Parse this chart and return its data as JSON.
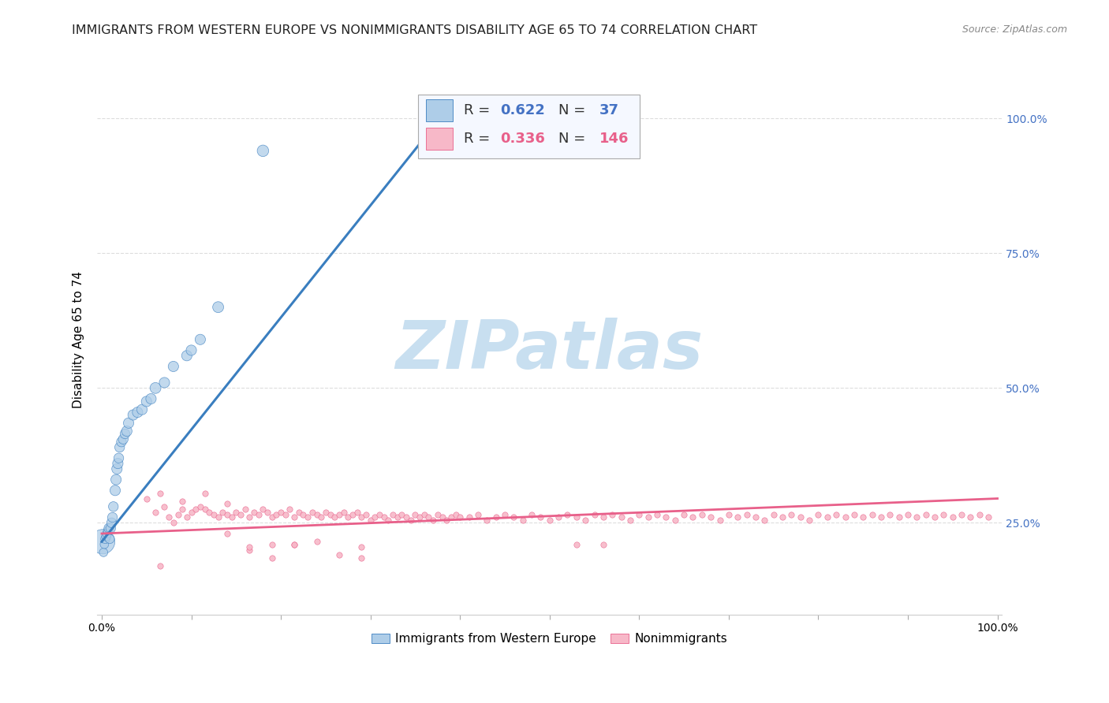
{
  "title": "IMMIGRANTS FROM WESTERN EUROPE VS NONIMMIGRANTS DISABILITY AGE 65 TO 74 CORRELATION CHART",
  "source_text": "Source: ZipAtlas.com",
  "ylabel": "Disability Age 65 to 74",
  "watermark": "ZIPatlas",
  "blue_R": "0.622",
  "blue_N": "37",
  "pink_R": "0.336",
  "pink_N": "146",
  "blue_label": "Immigrants from Western Europe",
  "pink_label": "Nonimmigrants",
  "blue_color": "#aecde8",
  "blue_line_color": "#3a7ebf",
  "pink_color": "#f7b8c8",
  "pink_line_color": "#e8608a",
  "blue_scatter_x": [
    0.001,
    0.002,
    0.003,
    0.004,
    0.005,
    0.006,
    0.007,
    0.008,
    0.009,
    0.01,
    0.011,
    0.012,
    0.013,
    0.015,
    0.016,
    0.017,
    0.018,
    0.019,
    0.02,
    0.022,
    0.024,
    0.026,
    0.028,
    0.03,
    0.035,
    0.04,
    0.045,
    0.05,
    0.055,
    0.06,
    0.07,
    0.08,
    0.095,
    0.1,
    0.11,
    0.13,
    0.18
  ],
  "blue_scatter_y": [
    0.215,
    0.195,
    0.21,
    0.22,
    0.225,
    0.23,
    0.235,
    0.24,
    0.22,
    0.24,
    0.25,
    0.26,
    0.28,
    0.31,
    0.33,
    0.35,
    0.36,
    0.37,
    0.39,
    0.4,
    0.405,
    0.415,
    0.42,
    0.435,
    0.45,
    0.455,
    0.46,
    0.475,
    0.48,
    0.5,
    0.51,
    0.54,
    0.56,
    0.57,
    0.59,
    0.65,
    0.94
  ],
  "blue_scatter_sizes": [
    500,
    60,
    60,
    70,
    70,
    70,
    70,
    80,
    70,
    80,
    80,
    80,
    80,
    90,
    90,
    90,
    90,
    80,
    80,
    80,
    80,
    80,
    90,
    90,
    90,
    90,
    90,
    90,
    90,
    100,
    90,
    90,
    90,
    90,
    90,
    100,
    110
  ],
  "pink_scatter_x": [
    0.05,
    0.06,
    0.07,
    0.075,
    0.08,
    0.085,
    0.09,
    0.095,
    0.1,
    0.105,
    0.11,
    0.115,
    0.12,
    0.125,
    0.13,
    0.135,
    0.14,
    0.145,
    0.15,
    0.155,
    0.16,
    0.165,
    0.17,
    0.175,
    0.18,
    0.185,
    0.19,
    0.195,
    0.2,
    0.205,
    0.21,
    0.215,
    0.22,
    0.225,
    0.23,
    0.235,
    0.24,
    0.245,
    0.25,
    0.255,
    0.26,
    0.265,
    0.27,
    0.275,
    0.28,
    0.285,
    0.29,
    0.295,
    0.3,
    0.305,
    0.31,
    0.315,
    0.32,
    0.325,
    0.33,
    0.335,
    0.34,
    0.345,
    0.35,
    0.355,
    0.36,
    0.365,
    0.37,
    0.375,
    0.38,
    0.385,
    0.39,
    0.395,
    0.4,
    0.41,
    0.42,
    0.43,
    0.44,
    0.45,
    0.46,
    0.47,
    0.48,
    0.49,
    0.5,
    0.51,
    0.52,
    0.53,
    0.54,
    0.55,
    0.56,
    0.57,
    0.58,
    0.59,
    0.6,
    0.61,
    0.62,
    0.63,
    0.64,
    0.65,
    0.66,
    0.67,
    0.68,
    0.69,
    0.7,
    0.71,
    0.72,
    0.73,
    0.74,
    0.75,
    0.76,
    0.77,
    0.78,
    0.79,
    0.8,
    0.81,
    0.82,
    0.83,
    0.84,
    0.85,
    0.86,
    0.87,
    0.88,
    0.89,
    0.9,
    0.91,
    0.92,
    0.93,
    0.94,
    0.95,
    0.96,
    0.97,
    0.98,
    0.99,
    0.065,
    0.09,
    0.115,
    0.14,
    0.165,
    0.19,
    0.215,
    0.065,
    0.29,
    0.14,
    0.165,
    0.19,
    0.215,
    0.24,
    0.265,
    0.29,
    0.53,
    0.56
  ],
  "pink_scatter_y": [
    0.295,
    0.27,
    0.28,
    0.26,
    0.25,
    0.265,
    0.275,
    0.26,
    0.27,
    0.275,
    0.28,
    0.275,
    0.27,
    0.265,
    0.26,
    0.27,
    0.265,
    0.26,
    0.27,
    0.265,
    0.275,
    0.26,
    0.27,
    0.265,
    0.275,
    0.27,
    0.26,
    0.265,
    0.27,
    0.265,
    0.275,
    0.26,
    0.27,
    0.265,
    0.26,
    0.27,
    0.265,
    0.26,
    0.27,
    0.265,
    0.26,
    0.265,
    0.27,
    0.26,
    0.265,
    0.27,
    0.26,
    0.265,
    0.255,
    0.26,
    0.265,
    0.26,
    0.255,
    0.265,
    0.26,
    0.265,
    0.26,
    0.255,
    0.265,
    0.26,
    0.265,
    0.26,
    0.255,
    0.265,
    0.26,
    0.255,
    0.26,
    0.265,
    0.26,
    0.26,
    0.265,
    0.255,
    0.26,
    0.265,
    0.26,
    0.255,
    0.265,
    0.26,
    0.255,
    0.26,
    0.265,
    0.26,
    0.255,
    0.265,
    0.26,
    0.265,
    0.26,
    0.255,
    0.265,
    0.26,
    0.265,
    0.26,
    0.255,
    0.265,
    0.26,
    0.265,
    0.26,
    0.255,
    0.265,
    0.26,
    0.265,
    0.26,
    0.255,
    0.265,
    0.26,
    0.265,
    0.26,
    0.255,
    0.265,
    0.26,
    0.265,
    0.26,
    0.265,
    0.26,
    0.265,
    0.26,
    0.265,
    0.26,
    0.265,
    0.26,
    0.265,
    0.26,
    0.265,
    0.26,
    0.265,
    0.26,
    0.265,
    0.26,
    0.305,
    0.29,
    0.305,
    0.285,
    0.2,
    0.21,
    0.21,
    0.17,
    0.205,
    0.23,
    0.205,
    0.185,
    0.21,
    0.215,
    0.19,
    0.185,
    0.21,
    0.21
  ],
  "blue_line_x": [
    0.0,
    0.38
  ],
  "blue_line_y": [
    0.215,
    1.005
  ],
  "pink_line_x": [
    0.0,
    1.0
  ],
  "pink_line_y": [
    0.23,
    0.295
  ],
  "xlim": [
    -0.005,
    1.005
  ],
  "ylim": [
    0.08,
    1.1
  ],
  "yticks": [
    0.25,
    0.5,
    0.75,
    1.0
  ],
  "ytick_right_labels": [
    "25.0%",
    "50.0%",
    "75.0%",
    "100.0%"
  ],
  "xticks": [
    0.0,
    0.1,
    0.2,
    0.3,
    0.4,
    0.5,
    0.6,
    0.7,
    0.8,
    0.9,
    1.0
  ],
  "xtick_labels": [
    "0.0%",
    "",
    "",
    "",
    "",
    "",
    "",
    "",
    "",
    "",
    "100.0%"
  ],
  "grid_color": "#dddddd",
  "bg_color": "#ffffff",
  "watermark_color": "#c8dff0",
  "title_color": "#222222",
  "right_axis_color": "#4472c4",
  "title_fontsize": 11.5,
  "ylabel_fontsize": 11,
  "tick_fontsize": 10,
  "legend_value_fontsize": 13,
  "legend_label_fontsize": 11
}
